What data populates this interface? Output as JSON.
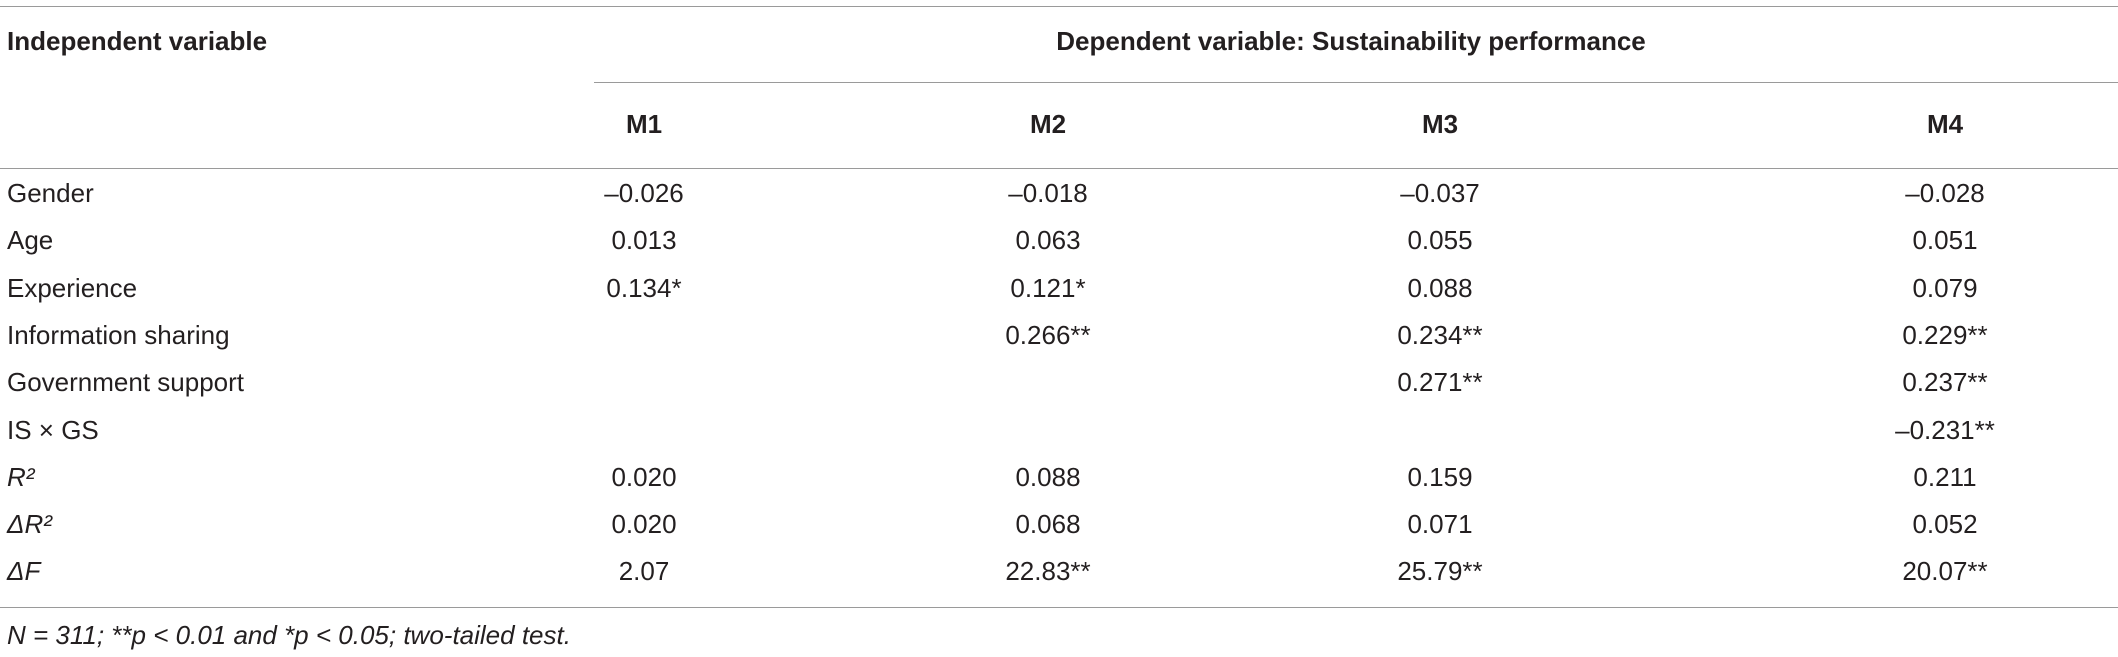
{
  "table": {
    "header": {
      "stub": "Independent variable",
      "group": "Dependent variable: Sustainability performance",
      "columns": [
        "M1",
        "M2",
        "M3",
        "M4"
      ]
    },
    "rows": [
      {
        "label": "Gender",
        "cells": [
          "–0.026",
          "–0.018",
          "–0.037",
          "–0.028"
        ]
      },
      {
        "label": "Age",
        "cells": [
          "0.013",
          "0.063",
          "0.055",
          "0.051"
        ]
      },
      {
        "label": "Experience",
        "cells": [
          "0.134*",
          "0.121*",
          "0.088",
          "0.079"
        ]
      },
      {
        "label": "Information sharing",
        "cells": [
          null,
          "0.266**",
          "0.234**",
          "0.229**"
        ]
      },
      {
        "label": "Government support",
        "cells": [
          null,
          null,
          "0.271**",
          "0.237**"
        ]
      },
      {
        "label": "IS × GS",
        "cells": [
          null,
          null,
          null,
          "–0.231**"
        ]
      },
      {
        "label": "R²",
        "cells": [
          "0.020",
          "0.088",
          "0.159",
          "0.211"
        ]
      },
      {
        "label": "ΔR²",
        "cells": [
          "0.020",
          "0.068",
          "0.071",
          "0.052"
        ]
      },
      {
        "label": "ΔF",
        "cells": [
          "2.07",
          "22.83**",
          "25.79**",
          "20.07**"
        ]
      }
    ],
    "note": "N = 311; **p < 0.01 and *p < 0.05; two-tailed test."
  }
}
